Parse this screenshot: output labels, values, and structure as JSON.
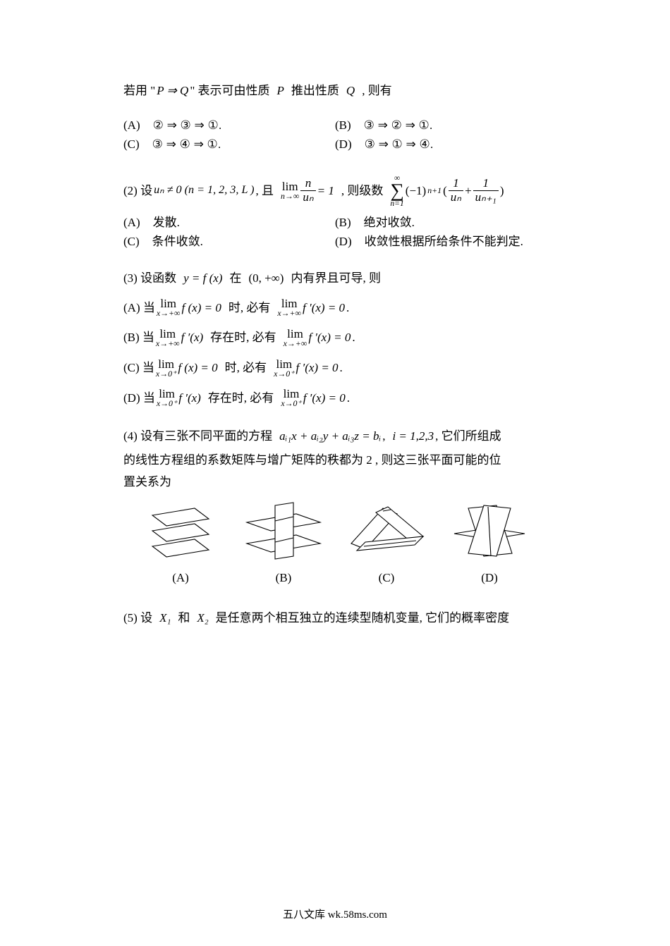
{
  "intro": {
    "pre": "若用 \"",
    "pq": "P ⇒ Q",
    "mid": "\" 表示可由性质",
    "P": "P",
    "mid2": "推出性质",
    "Q": "Q",
    "post": ", 则有"
  },
  "q1opts": {
    "A_label": "(A)",
    "A": "② ⇒ ③ ⇒ ①.",
    "B_label": "(B)",
    "B": "③ ⇒ ② ⇒ ①.",
    "C_label": "(C)",
    "C": "③ ⇒ ④ ⇒ ①.",
    "D_label": "(D)",
    "D": "③ ⇒ ① ⇒ ④."
  },
  "q2": {
    "label": "(2) 设",
    "un": "uₙ ≠ 0 (n = 1, 2, 3, L )",
    "comma": ", 且",
    "lim_top": "lim",
    "lim_bot": "n→∞",
    "frac_num": "n",
    "frac_den": "uₙ",
    "eq": "= 1",
    "mid": ", 则级数",
    "sum_top": "∞",
    "sum_bot": "n=1",
    "term1": "(−1)",
    "term1_sup": "n+1",
    "lp": "(",
    "f1n": "1",
    "f1d": "uₙ",
    "plus": "+",
    "f2n": "1",
    "f2d": "uₙ₊₁",
    "rp": ")"
  },
  "q2opts": {
    "A_label": "(A)",
    "A": "发散.",
    "B_label": "(B)",
    "B": "绝对收敛.",
    "C_label": "(C)",
    "C": "条件收敛.",
    "D_label": "(D)",
    "D": "收敛性根据所给条件不能判定."
  },
  "q3": {
    "label": "(3) 设函数",
    "yfx": "y = f (x)",
    "mid": "在",
    "interval": "(0, +∞)",
    "post": "内有界且可导, 则"
  },
  "q3opts": {
    "A_label": "(A)  当",
    "A_l1_top": "lim",
    "A_l1_bot": "x→+∞",
    "A_f1": "f (x) = 0",
    "A_mid": "时, 必有",
    "A_l2_top": "lim",
    "A_l2_bot": "x→+∞",
    "A_f2": "f ′(x) = 0",
    "A_end": ".",
    "B_label": "(B)  当",
    "B_l1_top": "lim",
    "B_l1_bot": "x→+∞",
    "B_f1": "f ′(x)",
    "B_mid": "存在时, 必有",
    "B_l2_top": "lim",
    "B_l2_bot": "x→+∞",
    "B_f2": "f ′(x) = 0",
    "B_end": ".",
    "C_label": "(C)  当",
    "C_l1_top": "lim",
    "C_l1_bot": "x→0⁺",
    "C_f1": "f (x) = 0",
    "C_mid": "时, 必有",
    "C_l2_top": "lim",
    "C_l2_bot": "x→0⁺",
    "C_f2": "f ′(x) = 0",
    "C_end": ".",
    "D_label": "(D)  当",
    "D_l1_top": "lim",
    "D_l1_bot": "x→0⁺",
    "D_f1": "f ′(x)",
    "D_mid": "存在时, 必有",
    "D_l2_top": "lim",
    "D_l2_bot": "x→0⁺",
    "D_f2": "f ′(x) = 0",
    "D_end": "."
  },
  "q4": {
    "label": "(4) 设有三张不同平面的方程",
    "eq": "aᵢ₁x + aᵢ₂y + aᵢ₃z = bᵢ",
    "comma": ",",
    "idx": "i = 1,2,3",
    "post": ", 它们所组成",
    "line2": "的线性方程组的系数矩阵与增广矩阵的秩都为 2 , 则这三张平面可能的位",
    "line3": "置关系为"
  },
  "q4labels": {
    "A": "(A)",
    "B": "(B)",
    "C": "(C)",
    "D": "(D)"
  },
  "geom": {
    "stroke": "#000000",
    "fill": "#ffffff",
    "strokeWidth": 1.1
  },
  "q5": {
    "label": "(5) 设",
    "X1": "X₁",
    "and": "和",
    "X2": "X₂",
    "post": "是任意两个相互独立的连续型随机变量, 它们的概率密度"
  },
  "footer": "五八文库 wk.58ms.com"
}
